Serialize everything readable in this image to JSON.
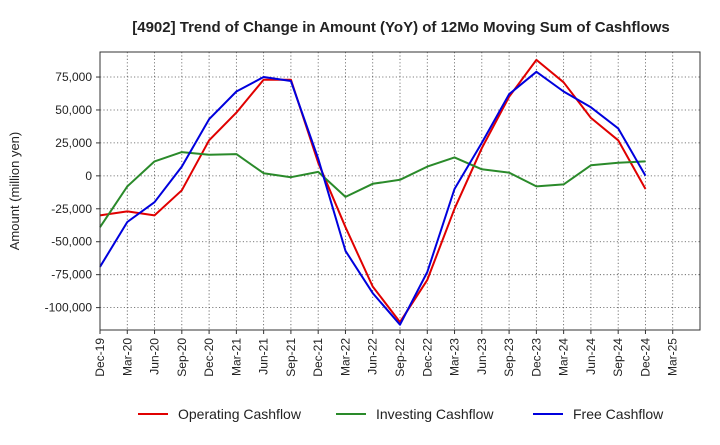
{
  "chart_data": {
    "type": "line",
    "title": "[4902]  Trend of Change in Amount (YoY) of 12Mo Moving Sum of Cashflows",
    "xlabel": "",
    "ylabel": "Amount (million yen)",
    "categories": [
      "Dec-19",
      "Mar-20",
      "Jun-20",
      "Sep-20",
      "Dec-20",
      "Mar-21",
      "Jun-21",
      "Sep-21",
      "Dec-21",
      "Mar-22",
      "Jun-22",
      "Sep-22",
      "Dec-22",
      "Mar-23",
      "Jun-23",
      "Sep-23",
      "Dec-23",
      "Mar-24",
      "Jun-24",
      "Sep-24",
      "Dec-24",
      "Mar-25"
    ],
    "ylim": [
      -117000,
      94000
    ],
    "yticks": [
      -100000,
      -75000,
      -50000,
      -25000,
      0,
      25000,
      50000,
      75000
    ],
    "ytick_labels": [
      "-100,000",
      "-75,000",
      "-50,000",
      "-25,000",
      "0",
      "25,000",
      "50,000",
      "75,000"
    ],
    "grid": true,
    "legend_position": "bottom",
    "series": [
      {
        "name": "Operating Cashflow",
        "color": "#e00000",
        "values": [
          -30000,
          -27000,
          -30000,
          -11000,
          27000,
          48000,
          73000,
          73000,
          10000,
          -39000,
          -84000,
          -111000,
          -79000,
          -25000,
          21000,
          60000,
          88000,
          71000,
          44000,
          27000,
          -10000,
          null
        ]
      },
      {
        "name": "Investing Cashflow",
        "color": "#2a8a2a",
        "values": [
          -39000,
          -8000,
          11000,
          18000,
          16000,
          16500,
          2000,
          -1000,
          3000,
          -16000,
          -6000,
          -3000,
          7000,
          14000,
          5000,
          2500,
          -8000,
          -6500,
          8000,
          10000,
          11000,
          null
        ]
      },
      {
        "name": "Free Cashflow",
        "color": "#0000dd",
        "values": [
          -69000,
          -35000,
          -20000,
          7000,
          43000,
          64000,
          75000,
          72000,
          13000,
          -57000,
          -89000,
          -113000,
          -73000,
          -10000,
          25000,
          62000,
          79000,
          64000,
          52000,
          36000,
          0,
          null
        ]
      }
    ]
  }
}
